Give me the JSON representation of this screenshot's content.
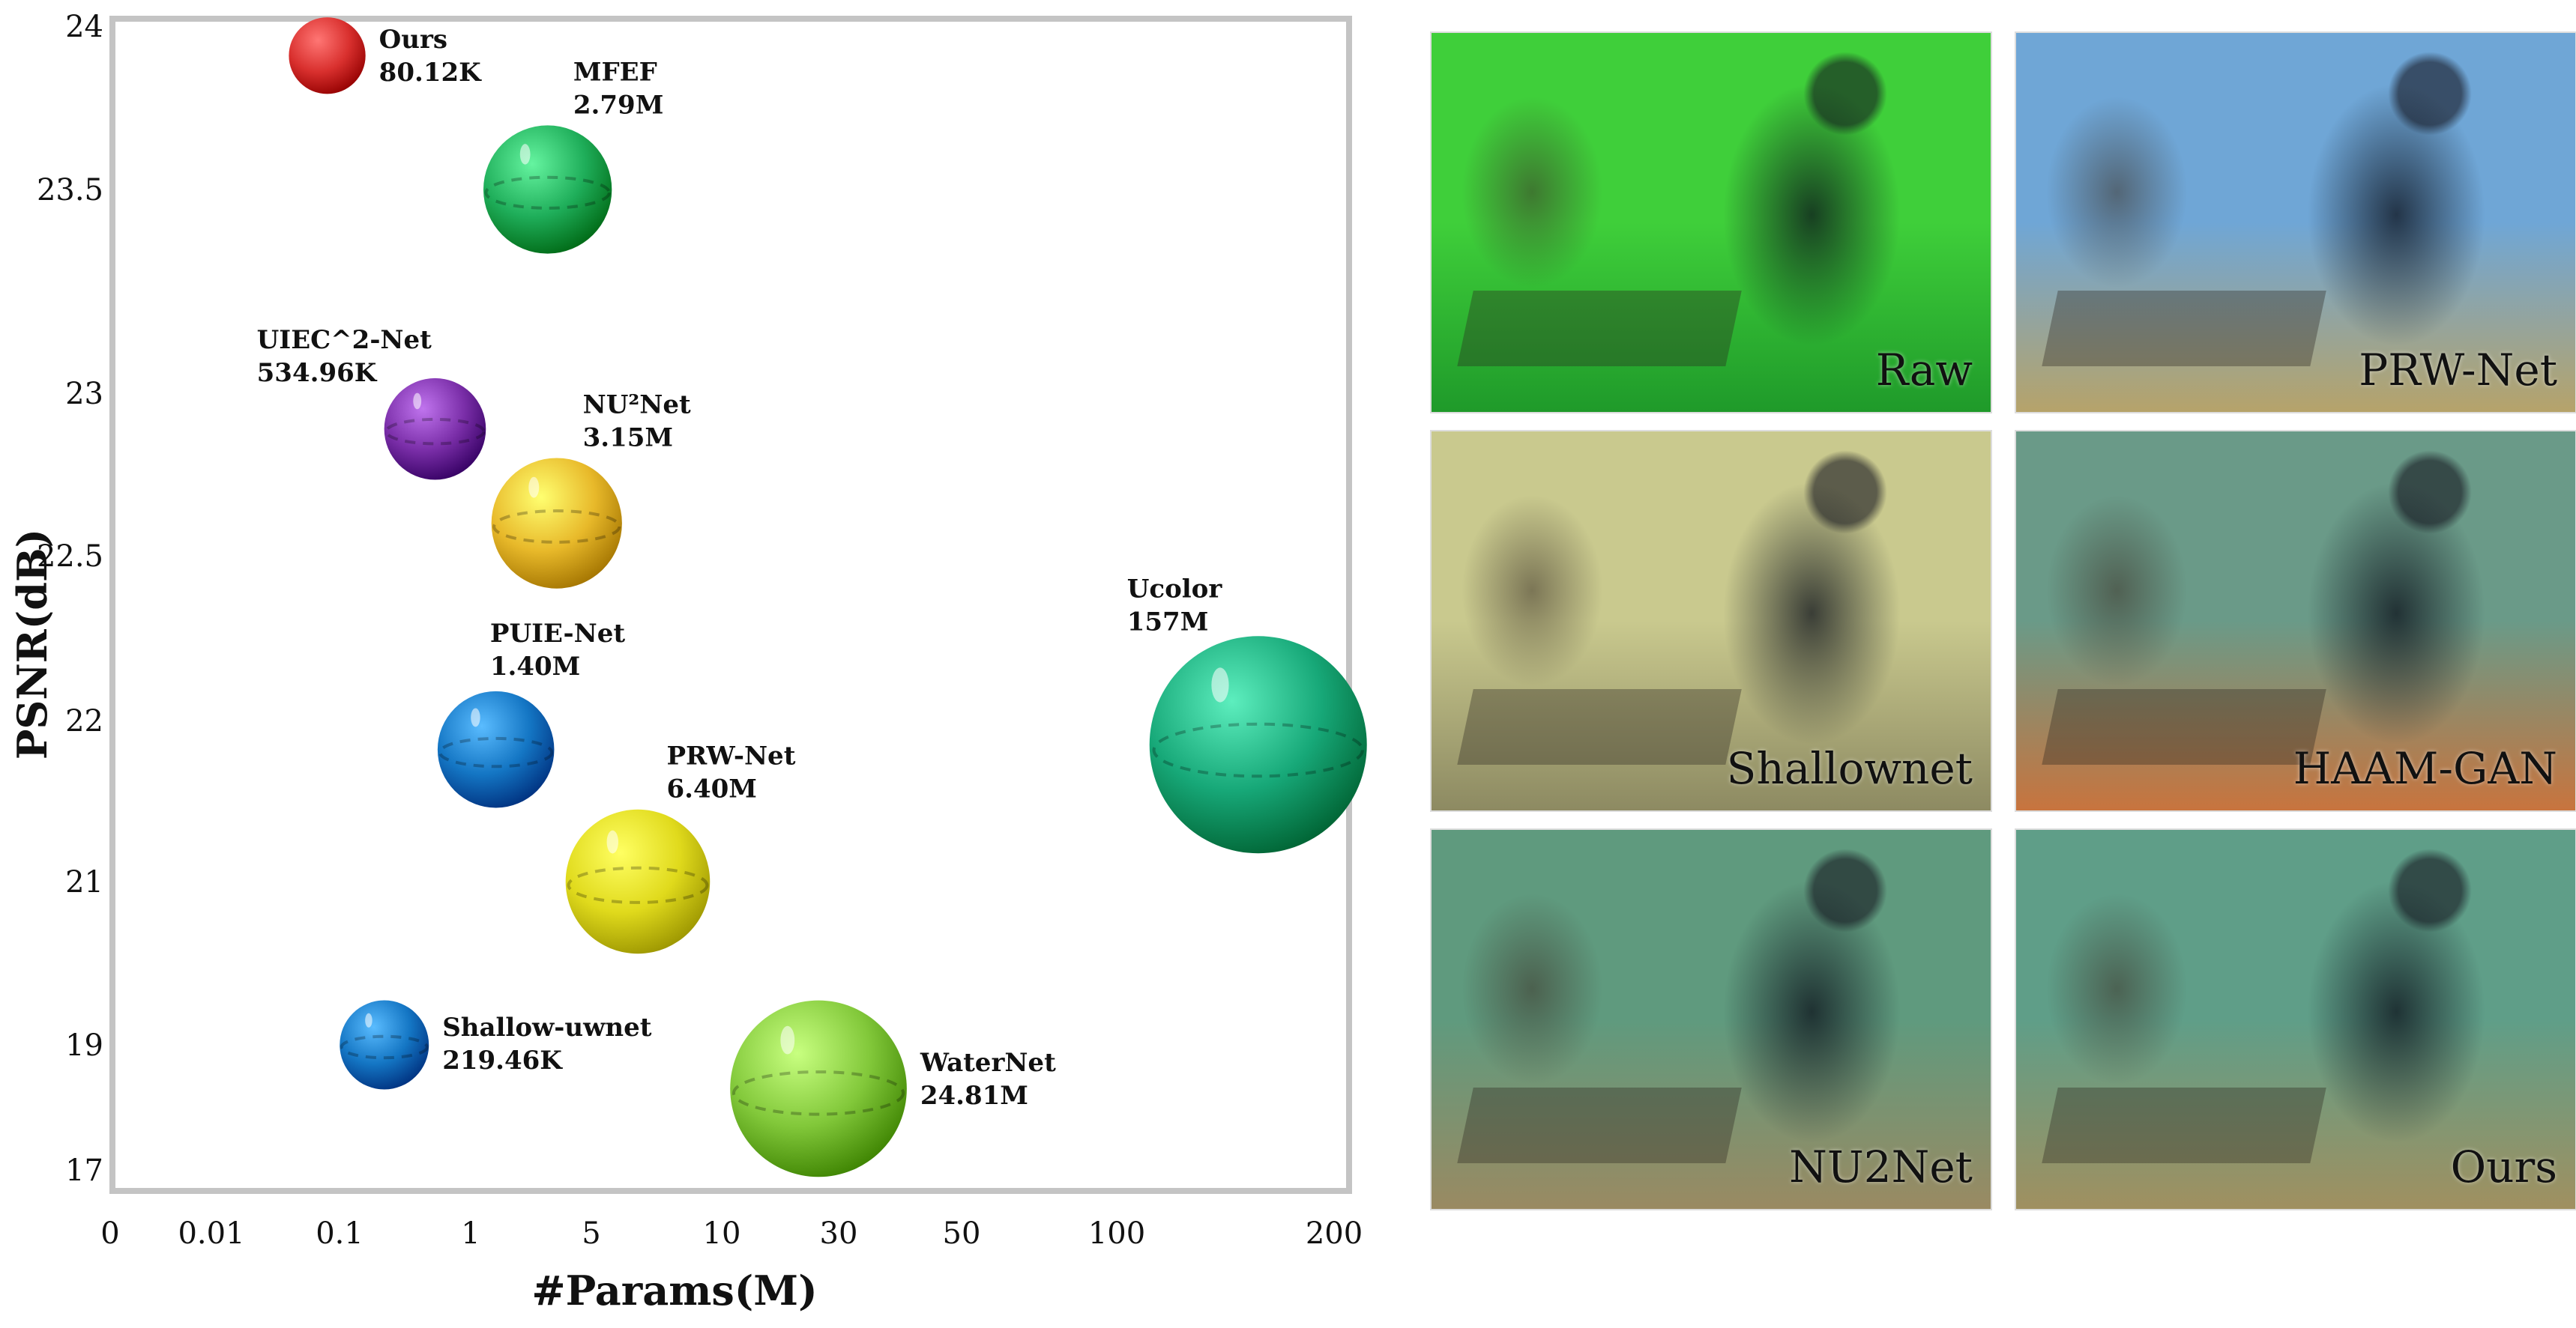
{
  "chart_data": {
    "type": "scatter",
    "title": "",
    "xlabel": "#Params(M)",
    "ylabel": "PSNR(dB)",
    "x_ticks": [
      "0",
      "0.01",
      "0.1",
      "1",
      "5",
      "10",
      "30",
      "50",
      "100",
      "200"
    ],
    "y_ticks": [
      "17",
      "19",
      "21",
      "22",
      "22.5",
      "23",
      "23.5",
      "24"
    ],
    "x_scale": "non-uniform categorical ticks",
    "y_scale": "non-uniform",
    "grid": false,
    "legend": "none",
    "points": [
      {
        "name": "Ours",
        "params_label": "80.12K",
        "params_m": 0.08012,
        "psnr": 23.91,
        "color": "#d9302e"
      },
      {
        "name": "MFEF",
        "params_label": "2.79M",
        "params_m": 2.79,
        "psnr": 23.5,
        "color": "#1fae5a"
      },
      {
        "name": "UIEC^2-Net",
        "params_label": "534.96K",
        "params_m": 0.53496,
        "psnr": 22.89,
        "color": "#7a2ea8"
      },
      {
        "name": "NU²Net",
        "params_label": "3.15M",
        "params_m": 3.15,
        "psnr": 22.6,
        "color": "#e8b92a"
      },
      {
        "name": "Ucolor",
        "params_label": "157M",
        "params_m": 157,
        "psnr": 21.85,
        "color": "#17a878"
      },
      {
        "name": "PUIE-Net",
        "params_label": "1.40M",
        "params_m": 1.4,
        "psnr": 21.82,
        "color": "#1476c4"
      },
      {
        "name": "PRW-Net",
        "params_label": "6.40M",
        "params_m": 6.4,
        "psnr": 21.0,
        "color": "#e0da1c"
      },
      {
        "name": "Shallow-uwnet",
        "params_label": "219.46K",
        "params_m": 0.21946,
        "psnr": 19.0,
        "color": "#1476c4"
      },
      {
        "name": "WaterNet",
        "params_label": "24.81M",
        "params_m": 24.81,
        "psnr": 18.3,
        "color": "#82c83a"
      }
    ]
  },
  "gallery": [
    {
      "caption": "Raw",
      "tint": "#3fcf3a",
      "tint2": "#1f9a2a"
    },
    {
      "caption": "PRW-Net",
      "tint": "#6fa6d6",
      "tint2": "#b6a36a"
    },
    {
      "caption": "Shallownet",
      "tint": "#c9c98e",
      "tint2": "#8d8a62"
    },
    {
      "caption": "HAAM-GAN",
      "tint": "#6a9a88",
      "tint2": "#c8743e"
    },
    {
      "caption": "NU2Net",
      "tint": "#5f9a7e",
      "tint2": "#9a8a62"
    },
    {
      "caption": "Ours",
      "tint": "#5f9e88",
      "tint2": "#a09060"
    }
  ]
}
